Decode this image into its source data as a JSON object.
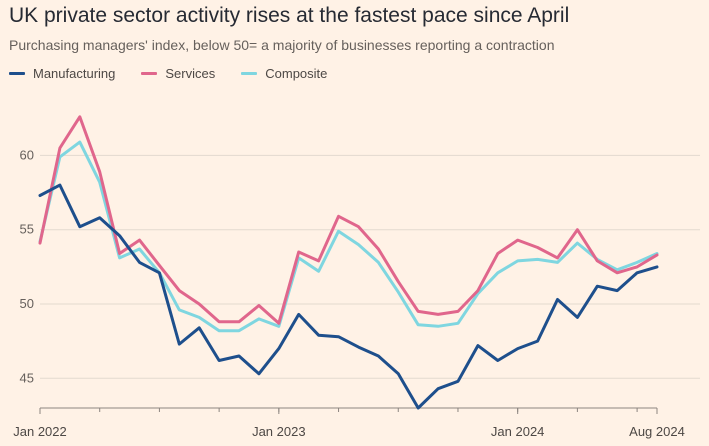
{
  "header": {
    "title": "UK private sector activity rises at the fastest pace since April",
    "subtitle": "Purchasing managers' index, below 50= a majority of businesses reporting a contraction"
  },
  "colors": {
    "background": "#fff2e6",
    "grid": "#e3d9cf",
    "axis": "#8c8580",
    "manufacturing": "#1e4f8c",
    "services": "#e0668c",
    "composite": "#7fd6e0"
  },
  "chart_data": {
    "type": "line",
    "title": "UK private sector activity rises at the fastest pace since April",
    "subtitle": "Purchasing managers' index, below 50= a majority of businesses reporting a contraction",
    "xlabel": "",
    "ylabel": "",
    "ylim": [
      43,
      64
    ],
    "yticks": [
      45,
      50,
      55,
      60
    ],
    "x": [
      "2022-01",
      "2022-02",
      "2022-03",
      "2022-04",
      "2022-05",
      "2022-06",
      "2022-07",
      "2022-08",
      "2022-09",
      "2022-10",
      "2022-11",
      "2022-12",
      "2023-01",
      "2023-02",
      "2023-03",
      "2023-04",
      "2023-05",
      "2023-06",
      "2023-07",
      "2023-08",
      "2023-09",
      "2023-10",
      "2023-11",
      "2023-12",
      "2024-01",
      "2024-02",
      "2024-03",
      "2024-04",
      "2024-05",
      "2024-06",
      "2024-07",
      "2024-08"
    ],
    "xtick_labels": [
      {
        "x": "2022-01",
        "label": "Jan 2022"
      },
      {
        "x": "2023-01",
        "label": "Jan 2023"
      },
      {
        "x": "2024-01",
        "label": "Jan 2024"
      },
      {
        "x": "2024-08",
        "label": "Aug 2024"
      }
    ],
    "grid": true,
    "legend_position": "top-left",
    "series": [
      {
        "name": "Manufacturing",
        "color": "#1e4f8c",
        "values": [
          57.3,
          58.0,
          55.2,
          55.8,
          54.6,
          52.8,
          52.1,
          47.3,
          48.4,
          46.2,
          46.5,
          45.3,
          47.0,
          49.3,
          47.9,
          47.8,
          47.1,
          46.5,
          45.3,
          43.0,
          44.3,
          44.8,
          47.2,
          46.2,
          47.0,
          47.5,
          50.3,
          49.1,
          51.2,
          50.9,
          52.1,
          52.5
        ]
      },
      {
        "name": "Services",
        "color": "#e0668c",
        "values": [
          54.1,
          60.5,
          62.6,
          58.9,
          53.4,
          54.3,
          52.6,
          50.9,
          50.0,
          48.8,
          48.8,
          49.9,
          48.7,
          53.5,
          52.9,
          55.9,
          55.2,
          53.7,
          51.5,
          49.5,
          49.3,
          49.5,
          50.9,
          53.4,
          54.3,
          53.8,
          53.1,
          55.0,
          52.9,
          52.1,
          52.5,
          53.3
        ]
      },
      {
        "name": "Composite",
        "color": "#7fd6e0",
        "values": [
          54.2,
          59.9,
          60.9,
          58.2,
          53.1,
          53.7,
          52.1,
          49.6,
          49.1,
          48.2,
          48.2,
          49.0,
          48.5,
          53.1,
          52.2,
          54.9,
          54.0,
          52.8,
          50.8,
          48.6,
          48.5,
          48.7,
          50.7,
          52.1,
          52.9,
          53.0,
          52.8,
          54.1,
          53.0,
          52.3,
          52.8,
          53.4
        ]
      }
    ]
  }
}
